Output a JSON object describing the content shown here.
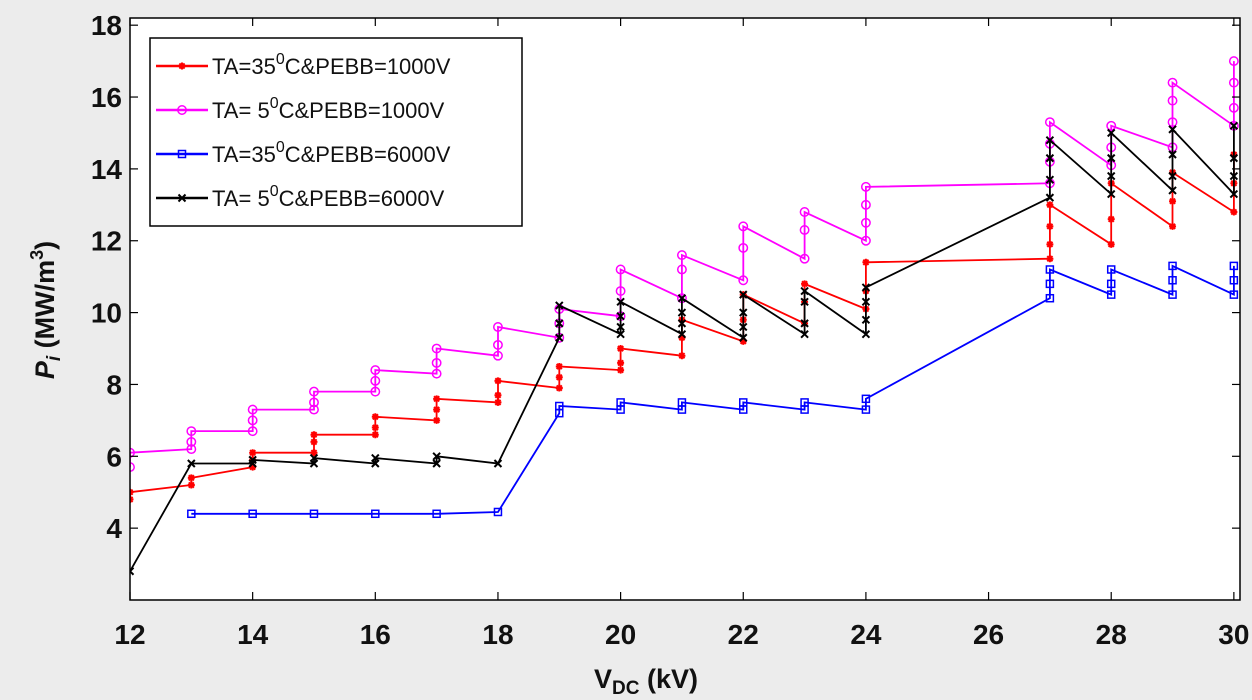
{
  "chart_data": {
    "type": "line",
    "xlabel": {
      "main": "V",
      "sub": "DC",
      "unit": " (kV)"
    },
    "ylabel": {
      "main": "P",
      "sub": "i",
      "unit": " (MW/m",
      "sup": "3",
      "close": ")"
    },
    "xlim": [
      12,
      30.1
    ],
    "ylim": [
      2,
      18.2
    ],
    "xticks": [
      12,
      14,
      16,
      18,
      20,
      22,
      24,
      26,
      28,
      30
    ],
    "yticks": [
      4,
      6,
      8,
      10,
      12,
      14,
      16,
      18
    ],
    "grid": false,
    "legend_position": "top-left",
    "series": [
      {
        "name": "TA=35⁰C&PEBB=1000V",
        "legend": {
          "pre": "TA=35",
          "sup": "0",
          "post": "C&PEBB=1000V"
        },
        "color": "#ff0000",
        "marker": "asterisk",
        "points": [
          [
            12,
            4.8
          ],
          [
            12,
            5.0
          ],
          [
            13,
            5.2
          ],
          [
            13,
            5.4
          ],
          [
            14,
            5.7
          ],
          [
            14,
            5.9
          ],
          [
            14,
            6.1
          ],
          [
            15,
            6.1
          ],
          [
            15,
            6.4
          ],
          [
            15,
            6.6
          ],
          [
            16,
            6.6
          ],
          [
            16,
            6.8
          ],
          [
            16,
            7.1
          ],
          [
            17,
            7.0
          ],
          [
            17,
            7.3
          ],
          [
            17,
            7.6
          ],
          [
            18,
            7.5
          ],
          [
            18,
            7.7
          ],
          [
            18,
            8.1
          ],
          [
            19,
            7.9
          ],
          [
            19,
            8.2
          ],
          [
            19,
            8.5
          ],
          [
            20,
            8.4
          ],
          [
            20,
            8.6
          ],
          [
            20,
            9.0
          ],
          [
            21,
            8.8
          ],
          [
            21,
            9.3
          ],
          [
            21,
            9.8
          ],
          [
            22,
            9.2
          ],
          [
            22,
            9.8
          ],
          [
            22,
            10.5
          ],
          [
            23,
            9.7
          ],
          [
            23,
            10.3
          ],
          [
            23,
            10.8
          ],
          [
            24,
            10.1
          ],
          [
            24,
            10.6
          ],
          [
            24,
            11.4
          ],
          [
            27,
            11.5
          ],
          [
            27,
            11.9
          ],
          [
            27,
            12.4
          ],
          [
            27,
            13.0
          ],
          [
            28,
            11.9
          ],
          [
            28,
            12.6
          ],
          [
            28,
            13.6
          ],
          [
            29,
            12.4
          ],
          [
            29,
            13.1
          ],
          [
            29,
            13.9
          ],
          [
            30,
            12.8
          ],
          [
            30,
            13.6
          ],
          [
            30,
            14.4
          ]
        ]
      },
      {
        "name": "TA= 5⁰C&PEBB=1000V",
        "legend": {
          "pre": "TA= 5",
          "sup": "0",
          "post": "C&PEBB=1000V"
        },
        "color": "#ff00ff",
        "marker": "circle",
        "points": [
          [
            12,
            5.7
          ],
          [
            12,
            6.1
          ],
          [
            13,
            6.2
          ],
          [
            13,
            6.4
          ],
          [
            13,
            6.7
          ],
          [
            14,
            6.7
          ],
          [
            14,
            7.0
          ],
          [
            14,
            7.3
          ],
          [
            15,
            7.3
          ],
          [
            15,
            7.5
          ],
          [
            15,
            7.8
          ],
          [
            16,
            7.8
          ],
          [
            16,
            8.1
          ],
          [
            16,
            8.4
          ],
          [
            17,
            8.3
          ],
          [
            17,
            8.6
          ],
          [
            17,
            9.0
          ],
          [
            18,
            8.8
          ],
          [
            18,
            9.1
          ],
          [
            18,
            9.6
          ],
          [
            19,
            9.3
          ],
          [
            19,
            9.7
          ],
          [
            19,
            10.1
          ],
          [
            20,
            9.9
          ],
          [
            20,
            10.6
          ],
          [
            20,
            11.2
          ],
          [
            21,
            10.4
          ],
          [
            21,
            11.2
          ],
          [
            21,
            11.6
          ],
          [
            22,
            10.9
          ],
          [
            22,
            11.8
          ],
          [
            22,
            12.4
          ],
          [
            23,
            11.5
          ],
          [
            23,
            12.3
          ],
          [
            23,
            12.8
          ],
          [
            24,
            12.0
          ],
          [
            24,
            12.5
          ],
          [
            24,
            13.0
          ],
          [
            24,
            13.5
          ],
          [
            27,
            13.6
          ],
          [
            27,
            14.2
          ],
          [
            27,
            14.7
          ],
          [
            27,
            15.3
          ],
          [
            28,
            14.1
          ],
          [
            28,
            14.6
          ],
          [
            28,
            15.2
          ],
          [
            29,
            14.6
          ],
          [
            29,
            15.3
          ],
          [
            29,
            15.9
          ],
          [
            29,
            16.4
          ],
          [
            30,
            15.2
          ],
          [
            30,
            15.7
          ],
          [
            30,
            16.4
          ],
          [
            30,
            17.0
          ]
        ]
      },
      {
        "name": "TA=35⁰C&PEBB=6000V",
        "legend": {
          "pre": "TA=35",
          "sup": "0",
          "post": "C&PEBB=6000V"
        },
        "color": "#0000ff",
        "marker": "square",
        "points": [
          [
            13,
            4.4
          ],
          [
            14,
            4.4
          ],
          [
            15,
            4.4
          ],
          [
            16,
            4.4
          ],
          [
            17,
            4.4
          ],
          [
            18,
            4.45
          ],
          [
            19,
            7.2
          ],
          [
            19,
            7.4
          ],
          [
            20,
            7.3
          ],
          [
            20,
            7.5
          ],
          [
            21,
            7.3
          ],
          [
            21,
            7.5
          ],
          [
            22,
            7.3
          ],
          [
            22,
            7.5
          ],
          [
            23,
            7.3
          ],
          [
            23,
            7.5
          ],
          [
            24,
            7.3
          ],
          [
            24,
            7.6
          ],
          [
            27,
            10.4
          ],
          [
            27,
            10.8
          ],
          [
            27,
            11.2
          ],
          [
            28,
            10.5
          ],
          [
            28,
            10.8
          ],
          [
            28,
            11.2
          ],
          [
            29,
            10.5
          ],
          [
            29,
            10.9
          ],
          [
            29,
            11.3
          ],
          [
            30,
            10.5
          ],
          [
            30,
            10.9
          ],
          [
            30,
            11.3
          ]
        ]
      },
      {
        "name": "TA= 5⁰C&PEBB=6000V",
        "legend": {
          "pre": "TA= 5",
          "sup": "0",
          "post": "C&PEBB=",
          "post2": "6000V"
        },
        "color": "#000000",
        "marker": "cross",
        "points": [
          [
            12,
            2.8
          ],
          [
            13,
            5.8
          ],
          [
            14,
            5.8
          ],
          [
            14,
            5.9
          ],
          [
            15,
            5.8
          ],
          [
            15,
            5.95
          ],
          [
            16,
            5.8
          ],
          [
            16,
            5.95
          ],
          [
            17,
            5.8
          ],
          [
            17,
            6.0
          ],
          [
            18,
            5.8
          ],
          [
            19,
            9.3
          ],
          [
            19,
            9.7
          ],
          [
            19,
            10.2
          ],
          [
            20,
            9.4
          ],
          [
            20,
            9.6
          ],
          [
            20,
            9.9
          ],
          [
            20,
            10.3
          ],
          [
            21,
            9.4
          ],
          [
            21,
            9.7
          ],
          [
            21,
            10.0
          ],
          [
            21,
            10.4
          ],
          [
            22,
            9.3
          ],
          [
            22,
            9.6
          ],
          [
            22,
            10.0
          ],
          [
            22,
            10.5
          ],
          [
            23,
            9.4
          ],
          [
            23,
            9.7
          ],
          [
            23,
            10.3
          ],
          [
            23,
            10.6
          ],
          [
            24,
            9.4
          ],
          [
            24,
            9.8
          ],
          [
            24,
            10.3
          ],
          [
            24,
            10.7
          ],
          [
            27,
            13.2
          ],
          [
            27,
            13.7
          ],
          [
            27,
            14.3
          ],
          [
            27,
            14.8
          ],
          [
            28,
            13.3
          ],
          [
            28,
            13.8
          ],
          [
            28,
            14.3
          ],
          [
            28,
            15.0
          ],
          [
            29,
            13.4
          ],
          [
            29,
            13.8
          ],
          [
            29,
            14.4
          ],
          [
            29,
            15.1
          ],
          [
            30,
            13.3
          ],
          [
            30,
            13.8
          ],
          [
            30,
            14.3
          ],
          [
            30,
            15.2
          ]
        ]
      }
    ]
  }
}
